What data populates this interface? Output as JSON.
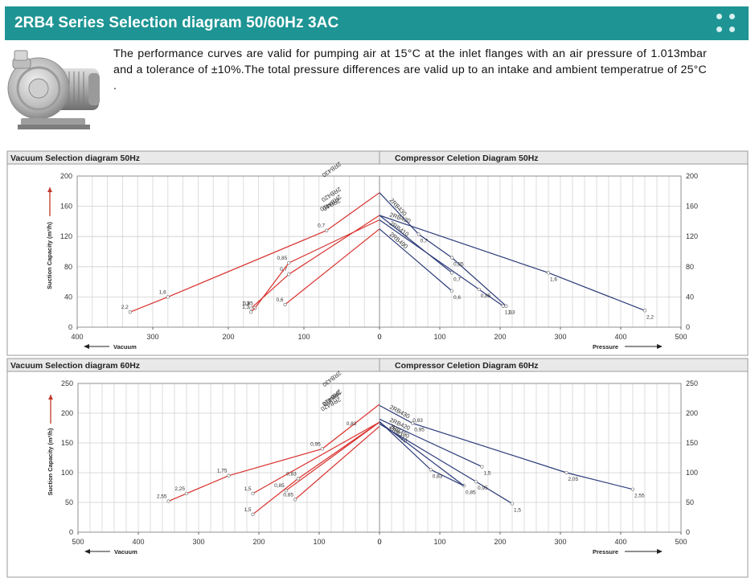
{
  "header": {
    "title": "2RB4 Series Selection diagram 50/60Hz 3AC",
    "accent_color": "#1e9494"
  },
  "intro": {
    "text": "The performance curves are valid for pumping air at 15°C at the inlet flanges with an air pressure of 1.013mbar and a tolerance of ±10%.The total pressure differences are valid up to an intake and ambient temperatrue of 25°C ."
  },
  "product_image": {
    "icon": "side-channel-blower-icon"
  },
  "chart_data": [
    {
      "type": "line",
      "title": "Vacuum Selection diagram 50Hz",
      "xlabel": "Vacuum",
      "ylabel": "Suction Capacity  (m³/h)",
      "xlim": [
        400,
        0
      ],
      "ylim": [
        0,
        200
      ],
      "xticks": [
        400,
        300,
        200,
        100,
        0
      ],
      "yticks": [
        0,
        40,
        80,
        120,
        160,
        200
      ],
      "grid": true,
      "series_color": "#d9302c",
      "series": [
        {
          "name": "2RB430",
          "points": [
            [
              330,
              20
            ],
            [
              280,
              40
            ],
            [
              70,
              128
            ],
            [
              0,
              178
            ]
          ],
          "labels": [
            "2,2",
            "1,6",
            "0,7",
            ""
          ]
        },
        {
          "name": "2RB420",
          "points": [
            [
              170,
              25
            ],
            [
              120,
              70
            ],
            [
              0,
              148
            ]
          ],
          "labels": [
            "1,3",
            "0,7",
            ""
          ]
        },
        {
          "name": "2RB410",
          "points": [
            [
              165,
              25
            ],
            [
              120,
              85
            ],
            [
              0,
              142
            ]
          ],
          "labels": [
            "0,85",
            "0,85",
            ""
          ]
        },
        {
          "name": "2RB490",
          "points": [
            [
              125,
              30
            ],
            [
              0,
              130
            ]
          ],
          "labels": [
            "0,6",
            ""
          ]
        },
        {
          "name": "",
          "points": [
            [
              170,
              20
            ],
            [
              165,
              25
            ]
          ],
          "labels": [
            "1,3",
            ""
          ]
        }
      ]
    },
    {
      "type": "line",
      "title": "Compressor Celetion Diagram 50Hz",
      "xlabel": "Pressure",
      "ylabel": "",
      "xlim": [
        0,
        500
      ],
      "ylim": [
        0,
        200
      ],
      "xticks": [
        0,
        100,
        200,
        300,
        400,
        500
      ],
      "yticks": [
        0,
        40,
        80,
        120,
        160,
        200
      ],
      "grid": true,
      "series_color": "#2b3a78",
      "series": [
        {
          "name": "2RB430",
          "points": [
            [
              0,
              178
            ],
            [
              65,
              123
            ],
            [
              120,
              92
            ],
            [
              210,
              28
            ]
          ],
          "labels": [
            "",
            "0,7",
            "0,85",
            "1,3"
          ]
        },
        {
          "name": "2RB420",
          "points": [
            [
              0,
              148
            ],
            [
              280,
              72
            ],
            [
              440,
              22
            ]
          ],
          "labels": [
            "",
            "1,6",
            "2,2"
          ]
        },
        {
          "name": "2RB410",
          "points": [
            [
              0,
              142
            ],
            [
              165,
              50
            ],
            [
              205,
              28
            ]
          ],
          "labels": [
            "",
            "0,85",
            "1,3"
          ]
        },
        {
          "name": "2RB490",
          "points": [
            [
              0,
              130
            ],
            [
              120,
              48
            ]
          ],
          "labels": [
            "",
            "0,6"
          ]
        },
        {
          "name": "",
          "points": [
            [
              0,
              148
            ],
            [
              120,
              72
            ]
          ],
          "labels": [
            "",
            "0,7"
          ]
        }
      ]
    },
    {
      "type": "line",
      "title": "Vacuum Selection diagram 60Hz",
      "xlabel": "Vacuum",
      "ylabel": "Suction Capacity  (m³/h)",
      "xlim": [
        500,
        0
      ],
      "ylim": [
        0,
        250
      ],
      "xticks": [
        500,
        400,
        300,
        200,
        100,
        0
      ],
      "yticks": [
        0,
        50,
        100,
        150,
        200,
        250
      ],
      "grid": true,
      "series_color": "#d9302c",
      "series": [
        {
          "name": "2RB430",
          "points": [
            [
              350,
              52
            ],
            [
              320,
              65
            ],
            [
              250,
              95
            ],
            [
              95,
              140
            ],
            [
              0,
              215
            ]
          ],
          "labels": [
            "2,55",
            "2,25",
            "1,75",
            "0,95",
            ""
          ]
        },
        {
          "name": "2RB420",
          "points": [
            [
              210,
              65
            ],
            [
              0,
              185
            ]
          ],
          "labels": [
            "1,5",
            ""
          ]
        },
        {
          "name": "2RB410",
          "points": [
            [
              155,
              70
            ],
            [
              0,
              185
            ]
          ],
          "labels": [
            "0,85",
            ""
          ]
        },
        {
          "name": "2RB490",
          "points": [
            [
              140,
              55
            ],
            [
              0,
              178
            ]
          ],
          "labels": [
            "0,85",
            ""
          ]
        },
        {
          "name": "",
          "points": [
            [
              210,
              30
            ],
            [
              135,
              90
            ],
            [
              0,
              185
            ]
          ],
          "labels": [
            "1,5",
            "0,83",
            ""
          ]
        }
      ],
      "extra_labels": [
        {
          "text": "0,83",
          "x": 55,
          "y": 180
        }
      ]
    },
    {
      "type": "line",
      "title": "Compressor Celetion Diagram 60Hz",
      "xlabel": "Pressure",
      "ylabel": "",
      "xlim": [
        0,
        500
      ],
      "ylim": [
        0,
        250
      ],
      "xticks": [
        0,
        100,
        200,
        300,
        400,
        500
      ],
      "yticks": [
        0,
        50,
        100,
        150,
        200,
        250
      ],
      "grid": true,
      "series_color": "#2b3a78",
      "series": [
        {
          "name": "2RB430",
          "points": [
            [
              0,
              213
            ],
            [
              55,
              183
            ],
            [
              310,
              100
            ],
            [
              420,
              72
            ]
          ],
          "labels": [
            "",
            "0,95",
            "2,05",
            "2,55"
          ]
        },
        {
          "name": "2RB420",
          "points": [
            [
              0,
              190
            ],
            [
              170,
              110
            ]
          ],
          "labels": [
            "",
            "1,5"
          ]
        },
        {
          "name": "2RB410",
          "points": [
            [
              0,
              186
            ],
            [
              85,
              105
            ],
            [
              140,
              78
            ]
          ],
          "labels": [
            "",
            "0,83",
            "0,85"
          ]
        },
        {
          "name": "2RB490",
          "points": [
            [
              0,
              182
            ],
            [
              160,
              85
            ],
            [
              220,
              48
            ]
          ],
          "labels": [
            "",
            "0,95",
            "1,5"
          ]
        },
        {
          "name": "",
          "points": [
            [
              0,
              185
            ],
            [
              140,
              78
            ]
          ],
          "labels": [
            "",
            ""
          ]
        }
      ],
      "extra_labels": [
        {
          "text": "0,83",
          "x": 55,
          "y": 185
        }
      ]
    }
  ]
}
